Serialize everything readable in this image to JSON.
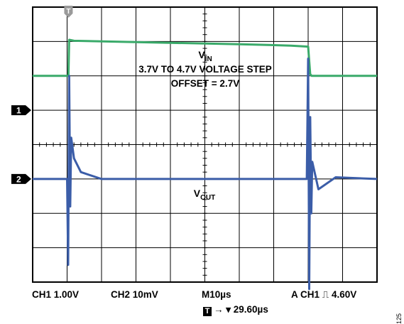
{
  "chart_data": {
    "type": "line",
    "title": "",
    "x_unit": "µs",
    "x_range": [
      0,
      100
    ],
    "grid": true,
    "divisions": {
      "x": 10,
      "y": 8
    },
    "trigger_marker": "T",
    "series": [
      {
        "name": "VIN",
        "name_main": "V",
        "name_sub": "IN",
        "channel": "1",
        "color": "#3aaa6a",
        "x": [
          0,
          10.4,
          10.6,
          12,
          30,
          60,
          75,
          80,
          80.6,
          81,
          100
        ],
        "y": [
          3.7,
          3.7,
          4.75,
          4.72,
          4.68,
          4.62,
          4.58,
          4.55,
          3.75,
          3.7,
          3.7
        ]
      },
      {
        "name": "VOUT",
        "name_main": "V",
        "name_sub": "OUT",
        "channel": "2",
        "color": "#3b5da8",
        "x": [
          0,
          10.0,
          10.3,
          10.6,
          10.9,
          11.2,
          12,
          14,
          20,
          79.6,
          80.0,
          80.3,
          80.6,
          80.9,
          81.2,
          83,
          88,
          100
        ],
        "y": [
          0,
          0,
          -25,
          30,
          -8,
          12,
          6,
          2,
          0,
          0,
          35,
          -32,
          18,
          -10,
          5,
          -3,
          0.5,
          0
        ]
      }
    ],
    "annotations": [
      "3.7V TO 4.7V VOLTAGE STEP",
      "OFFSET = 2.7V"
    ],
    "footer": {
      "ch1": "CH1  1.00V",
      "ch2": "CH2  10mV",
      "timebase": "M10µs",
      "trigger_label": "A  CH1",
      "trigger_edge": "⎍",
      "trigger_level": "4.60V",
      "trigger_position": "→ ▾ 29.60µs"
    },
    "figure_id": "125"
  }
}
